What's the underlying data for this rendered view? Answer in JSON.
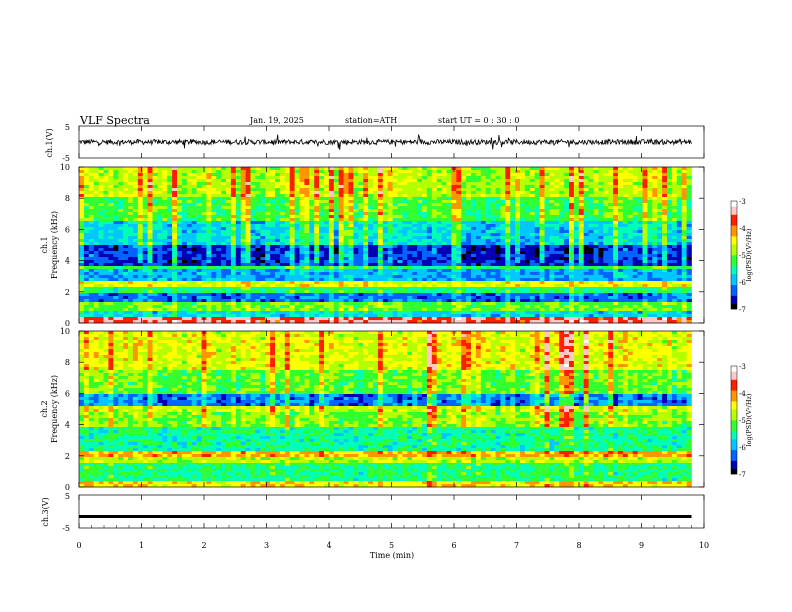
{
  "header": {
    "title": "VLF  Spectra",
    "date": "Jan. 19, 2025",
    "station": "station=ATH",
    "start": "start  UT  =   0 : 30 : 0"
  },
  "colorbar": {
    "label": "log(PSD)(V²/Hz)",
    "ticks": [
      "-3",
      "-4",
      "-5",
      "-6",
      "-7"
    ],
    "colors": [
      "#000000",
      "#0000b4",
      "#0064ff",
      "#00c8ff",
      "#00ffb4",
      "#32ff32",
      "#b4ff00",
      "#ffff00",
      "#ff9600",
      "#ff1e00",
      "#ffc8c8",
      "#ffffff"
    ]
  },
  "chart_data": [
    {
      "type": "line",
      "name": "ch1-waveform",
      "ylabel": "ch.1(V)",
      "ylim": [
        -5,
        5
      ],
      "yticks": [
        "5",
        "-5"
      ],
      "xlim": [
        0,
        10
      ],
      "description_values": {
        "mean": 0,
        "typical_amplitude": 0.8,
        "spike_amplitude": 2.5
      }
    },
    {
      "type": "heatmap",
      "name": "ch1-spectrogram",
      "ylabel": "ch.1\nFrequency  (kHz)",
      "ylabel_line1": "ch.1",
      "ylabel_line2": "Frequency  (kHz)",
      "ylim": [
        0,
        10
      ],
      "yticks": [
        "0",
        "2",
        "4",
        "6",
        "8",
        "10"
      ],
      "xlim": [
        0,
        9.8
      ],
      "zlim": [
        -7,
        -3
      ],
      "bands": [
        {
          "f": [
            0.0,
            0.3
          ],
          "level": -3.6
        },
        {
          "f": [
            0.3,
            0.8
          ],
          "level": -5.8
        },
        {
          "f": [
            0.8,
            1.3
          ],
          "level": -5.1
        },
        {
          "f": [
            1.3,
            1.9
          ],
          "level": -6.3
        },
        {
          "f": [
            1.9,
            2.3
          ],
          "level": -5.4
        },
        {
          "f": [
            2.3,
            2.6
          ],
          "level": -4.6
        },
        {
          "f": [
            2.6,
            3.4
          ],
          "level": -6.0
        },
        {
          "f": [
            3.4,
            3.7
          ],
          "level": -5.3
        },
        {
          "f": [
            3.7,
            5.0
          ],
          "level": -6.5
        },
        {
          "f": [
            5.0,
            6.5
          ],
          "level": -5.8
        },
        {
          "f": [
            6.5,
            8.0
          ],
          "level": -5.2
        },
        {
          "f": [
            8.0,
            10.0
          ],
          "level": -4.8
        }
      ]
    },
    {
      "type": "heatmap",
      "name": "ch2-spectrogram",
      "ylabel_line1": "ch.2",
      "ylabel_line2": "Frequency  (kHz)",
      "ylim": [
        0,
        10
      ],
      "yticks": [
        "0",
        "2",
        "4",
        "6",
        "8",
        "10"
      ],
      "xlim": [
        0,
        9.8
      ],
      "zlim": [
        -7,
        -3
      ],
      "bands": [
        {
          "f": [
            0.0,
            0.3
          ],
          "level": -4.4
        },
        {
          "f": [
            0.3,
            1.5
          ],
          "level": -5.4
        },
        {
          "f": [
            1.5,
            2.0
          ],
          "level": -4.8
        },
        {
          "f": [
            2.0,
            2.4
          ],
          "level": -4.2
        },
        {
          "f": [
            2.4,
            3.8
          ],
          "level": -5.5
        },
        {
          "f": [
            3.8,
            4.8
          ],
          "level": -5.0
        },
        {
          "f": [
            4.8,
            5.2
          ],
          "level": -4.7
        },
        {
          "f": [
            5.2,
            6.0
          ],
          "level": -6.2
        },
        {
          "f": [
            6.0,
            7.5
          ],
          "level": -5.1
        },
        {
          "f": [
            7.5,
            10.0
          ],
          "level": -4.6
        }
      ]
    },
    {
      "type": "line",
      "name": "ch3-waveform",
      "ylabel": "ch.3(V)",
      "ylim": [
        -5,
        5
      ],
      "yticks": [
        "5",
        "-5"
      ],
      "xlim": [
        0,
        10
      ],
      "constant_value": -1.5
    }
  ],
  "xaxis": {
    "label": "Time  (min)",
    "ticks": [
      "0",
      "1",
      "2",
      "3",
      "4",
      "5",
      "6",
      "7",
      "8",
      "9",
      "10"
    ],
    "xlim": [
      0,
      10
    ]
  }
}
